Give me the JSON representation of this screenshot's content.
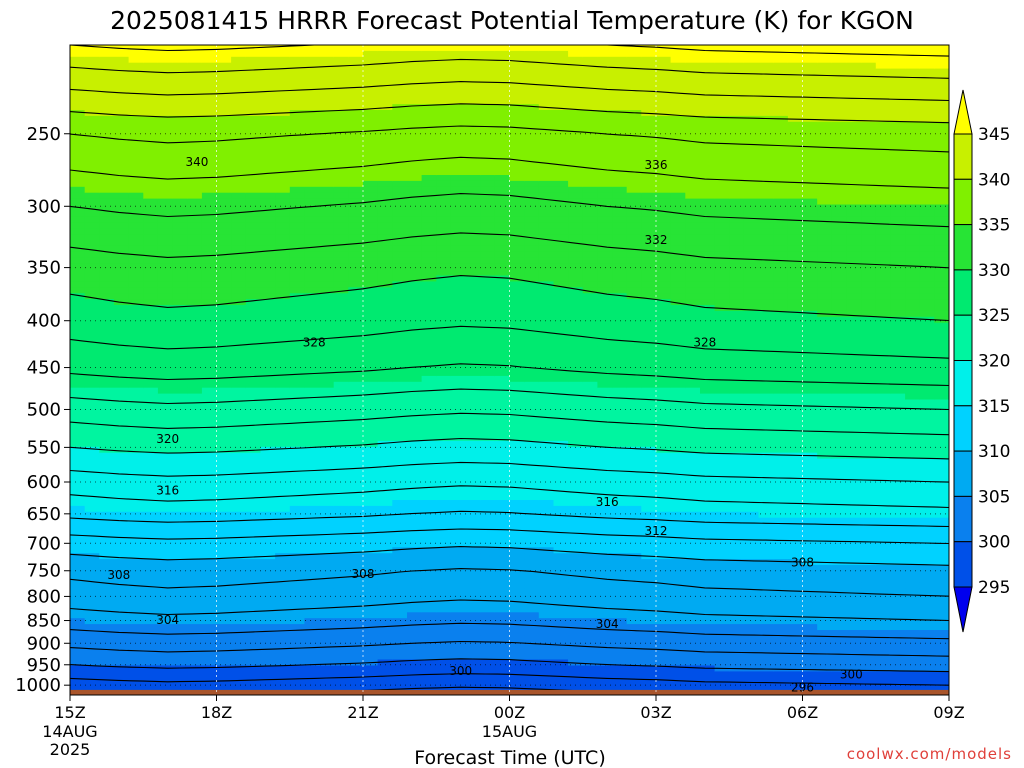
{
  "chart_data": {
    "type": "heatmap",
    "title": "2025081415 HRRR Forecast Potential Temperature (K) for KGON",
    "xlabel": "Forecast Time (UTC)",
    "ylabel": "",
    "x_ticks": [
      {
        "hour": 0,
        "label": "15Z",
        "sub1": "14AUG",
        "sub2": "2025"
      },
      {
        "hour": 3,
        "label": "18Z",
        "sub1": "",
        "sub2": ""
      },
      {
        "hour": 6,
        "label": "21Z",
        "sub1": "",
        "sub2": ""
      },
      {
        "hour": 9,
        "label": "00Z",
        "sub1": "15AUG",
        "sub2": ""
      },
      {
        "hour": 12,
        "label": "03Z",
        "sub1": "",
        "sub2": ""
      },
      {
        "hour": 15,
        "label": "06Z",
        "sub1": "",
        "sub2": ""
      },
      {
        "hour": 18,
        "label": "09Z",
        "sub1": "",
        "sub2": ""
      }
    ],
    "x_range_hours": [
      0,
      18
    ],
    "y_scale": "log",
    "y_range_hpa": [
      1025,
      200
    ],
    "y_ticks": [
      250,
      300,
      350,
      400,
      450,
      500,
      550,
      600,
      650,
      700,
      750,
      800,
      850,
      900,
      950,
      1000
    ],
    "grid": true,
    "surface_color": "#a9552b",
    "levels_hpa": [
      1000,
      950,
      900,
      850,
      800,
      750,
      700,
      650,
      600,
      550,
      500,
      450,
      400,
      350,
      300,
      250,
      200
    ],
    "theta_profile_at_00Z": [
      297,
      300,
      302.5,
      305,
      307,
      308.5,
      311,
      314.5,
      317,
      320,
      323,
      326.5,
      329,
      331,
      334,
      338,
      346
    ],
    "hourly_offset": [
      0,
      0.3,
      0.5,
      0.4,
      0.2,
      0,
      -0.2,
      -0.5,
      -0.7,
      -0.6,
      -0.3,
      0,
      0.2,
      0.5,
      0.6,
      0.7,
      0.8,
      0.9,
      1.0
    ],
    "colorbar": {
      "levels": [
        295,
        300,
        305,
        310,
        315,
        320,
        325,
        330,
        335,
        340,
        345
      ],
      "colors": [
        "#0000ee",
        "#0050e8",
        "#0a80ee",
        "#00aaf2",
        "#00d2ff",
        "#00f0ea",
        "#00f5a0",
        "#00ea70",
        "#27e435",
        "#80f000",
        "#c8f000",
        "#ffff00"
      ],
      "extend": "both"
    },
    "contour_labels": [
      {
        "hour": 2.6,
        "hpa": 268,
        "value": "340"
      },
      {
        "hour": 12.0,
        "hpa": 270,
        "value": "336"
      },
      {
        "hour": 12.0,
        "hpa": 326,
        "value": "332"
      },
      {
        "hour": 5.0,
        "hpa": 422,
        "value": "328"
      },
      {
        "hour": 13.0,
        "hpa": 422,
        "value": "328"
      },
      {
        "hour": 2.0,
        "hpa": 538,
        "value": "320"
      },
      {
        "hour": 2.0,
        "hpa": 612,
        "value": "316"
      },
      {
        "hour": 11.0,
        "hpa": 630,
        "value": "316"
      },
      {
        "hour": 12.0,
        "hpa": 678,
        "value": "312"
      },
      {
        "hour": 1.0,
        "hpa": 757,
        "value": "308"
      },
      {
        "hour": 6.0,
        "hpa": 755,
        "value": "308"
      },
      {
        "hour": 15.0,
        "hpa": 734,
        "value": "308"
      },
      {
        "hour": 2.0,
        "hpa": 848,
        "value": "304"
      },
      {
        "hour": 11.0,
        "hpa": 856,
        "value": "304"
      },
      {
        "hour": 8.0,
        "hpa": 964,
        "value": "300"
      },
      {
        "hour": 16.0,
        "hpa": 972,
        "value": "300"
      },
      {
        "hour": 15.0,
        "hpa": 1005,
        "value": "296"
      }
    ]
  },
  "credit": "coolwx.com/models"
}
